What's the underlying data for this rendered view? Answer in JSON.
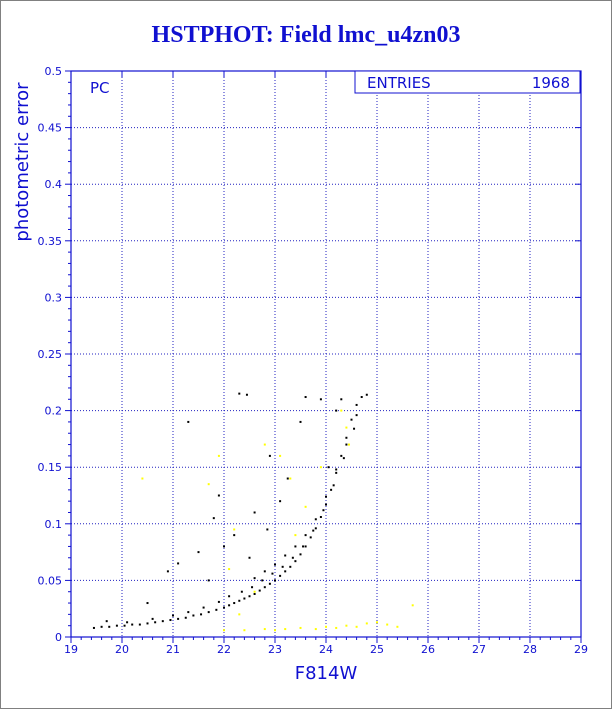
{
  "chart_data": {
    "type": "scatter",
    "title": "HSTPHOT: Field lmc_u4zn03",
    "xlabel": "F814W",
    "ylabel": "photometric error",
    "xlim": [
      19,
      29
    ],
    "ylim": [
      0,
      0.5
    ],
    "xticks": [
      "19",
      "20",
      "21",
      "22",
      "23",
      "24",
      "25",
      "26",
      "27",
      "28",
      "29"
    ],
    "yticks": [
      "0",
      "0.05",
      "0.1",
      "0.15",
      "0.2",
      "0.25",
      "0.3",
      "0.35",
      "0.4",
      "0.45",
      "0.5"
    ],
    "grid": true,
    "panel_label": "PC",
    "stats_box": {
      "label": "ENTRIES",
      "value": "1968"
    },
    "series": [
      {
        "color": "#000000",
        "points": [
          [
            19.45,
            0.008
          ],
          [
            19.6,
            0.009
          ],
          [
            19.75,
            0.009
          ],
          [
            19.9,
            0.01
          ],
          [
            20.05,
            0.01
          ],
          [
            20.2,
            0.011
          ],
          [
            20.35,
            0.011
          ],
          [
            20.5,
            0.012
          ],
          [
            20.65,
            0.013
          ],
          [
            20.8,
            0.014
          ],
          [
            20.95,
            0.015
          ],
          [
            21.1,
            0.016
          ],
          [
            21.25,
            0.017
          ],
          [
            21.4,
            0.019
          ],
          [
            21.55,
            0.02
          ],
          [
            21.7,
            0.022
          ],
          [
            21.85,
            0.024
          ],
          [
            22.0,
            0.026
          ],
          [
            22.1,
            0.028
          ],
          [
            22.2,
            0.03
          ],
          [
            22.3,
            0.032
          ],
          [
            22.4,
            0.034
          ],
          [
            22.5,
            0.036
          ],
          [
            22.6,
            0.038
          ],
          [
            22.7,
            0.041
          ],
          [
            22.8,
            0.044
          ],
          [
            22.9,
            0.047
          ],
          [
            23.0,
            0.05
          ],
          [
            23.1,
            0.054
          ],
          [
            23.2,
            0.058
          ],
          [
            23.3,
            0.062
          ],
          [
            23.4,
            0.067
          ],
          [
            23.5,
            0.073
          ],
          [
            23.6,
            0.08
          ],
          [
            23.7,
            0.088
          ],
          [
            23.8,
            0.096
          ],
          [
            23.9,
            0.106
          ],
          [
            24.0,
            0.117
          ],
          [
            24.1,
            0.13
          ],
          [
            24.2,
            0.145
          ],
          [
            24.3,
            0.16
          ],
          [
            24.4,
            0.176
          ],
          [
            24.5,
            0.192
          ],
          [
            24.6,
            0.205
          ],
          [
            24.7,
            0.212
          ],
          [
            24.8,
            0.214
          ],
          [
            19.7,
            0.014
          ],
          [
            20.1,
            0.013
          ],
          [
            20.6,
            0.016
          ],
          [
            21.0,
            0.019
          ],
          [
            21.3,
            0.022
          ],
          [
            21.6,
            0.026
          ],
          [
            21.9,
            0.031
          ],
          [
            22.1,
            0.036
          ],
          [
            22.35,
            0.04
          ],
          [
            22.55,
            0.044
          ],
          [
            22.75,
            0.05
          ],
          [
            22.95,
            0.056
          ],
          [
            23.15,
            0.062
          ],
          [
            23.35,
            0.07
          ],
          [
            23.55,
            0.08
          ],
          [
            23.75,
            0.094
          ],
          [
            23.95,
            0.112
          ],
          [
            24.15,
            0.134
          ],
          [
            24.35,
            0.158
          ],
          [
            24.55,
            0.184
          ],
          [
            22.6,
            0.052
          ],
          [
            22.8,
            0.058
          ],
          [
            23.0,
            0.064
          ],
          [
            23.2,
            0.072
          ],
          [
            23.4,
            0.08
          ],
          [
            23.6,
            0.09
          ],
          [
            23.8,
            0.104
          ],
          [
            24.0,
            0.124
          ],
          [
            24.2,
            0.148
          ],
          [
            24.4,
            0.17
          ],
          [
            24.6,
            0.196
          ],
          [
            21.3,
            0.19
          ],
          [
            21.9,
            0.125
          ],
          [
            22.3,
            0.215
          ],
          [
            22.45,
            0.214
          ],
          [
            23.6,
            0.212
          ],
          [
            24.05,
            0.15
          ],
          [
            24.2,
            0.2
          ],
          [
            22.0,
            0.08
          ],
          [
            22.5,
            0.07
          ],
          [
            22.2,
            0.09
          ],
          [
            21.5,
            0.075
          ],
          [
            21.1,
            0.065
          ],
          [
            20.9,
            0.058
          ],
          [
            21.8,
            0.105
          ],
          [
            22.9,
            0.16
          ],
          [
            23.25,
            0.14
          ],
          [
            23.5,
            0.19
          ],
          [
            23.9,
            0.21
          ],
          [
            22.6,
            0.11
          ],
          [
            21.7,
            0.05
          ],
          [
            20.5,
            0.03
          ],
          [
            22.85,
            0.095
          ],
          [
            23.1,
            0.12
          ],
          [
            24.3,
            0.21
          ]
        ]
      },
      {
        "color": "#ffff00",
        "points": [
          [
            20.4,
            0.14
          ],
          [
            21.7,
            0.135
          ],
          [
            21.9,
            0.16
          ],
          [
            22.1,
            0.06
          ],
          [
            22.3,
            0.02
          ],
          [
            22.8,
            0.17
          ],
          [
            23.1,
            0.16
          ],
          [
            23.3,
            0.14
          ],
          [
            23.4,
            0.09
          ],
          [
            23.6,
            0.115
          ],
          [
            23.9,
            0.15
          ],
          [
            24.3,
            0.2
          ],
          [
            24.4,
            0.185
          ],
          [
            24.45,
            0.17
          ],
          [
            22.2,
            0.095
          ],
          [
            22.6,
            0.04
          ],
          [
            22.0,
            0.006
          ],
          [
            22.4,
            0.006
          ],
          [
            22.8,
            0.007
          ],
          [
            23.0,
            0.006
          ],
          [
            23.2,
            0.007
          ],
          [
            23.5,
            0.008
          ],
          [
            23.8,
            0.007
          ],
          [
            24.0,
            0.009
          ],
          [
            24.2,
            0.008
          ],
          [
            24.4,
            0.01
          ],
          [
            24.6,
            0.009
          ],
          [
            24.8,
            0.012
          ],
          [
            25.0,
            0.013
          ],
          [
            25.2,
            0.011
          ],
          [
            25.4,
            0.009
          ],
          [
            25.7,
            0.028
          ]
        ]
      }
    ]
  }
}
